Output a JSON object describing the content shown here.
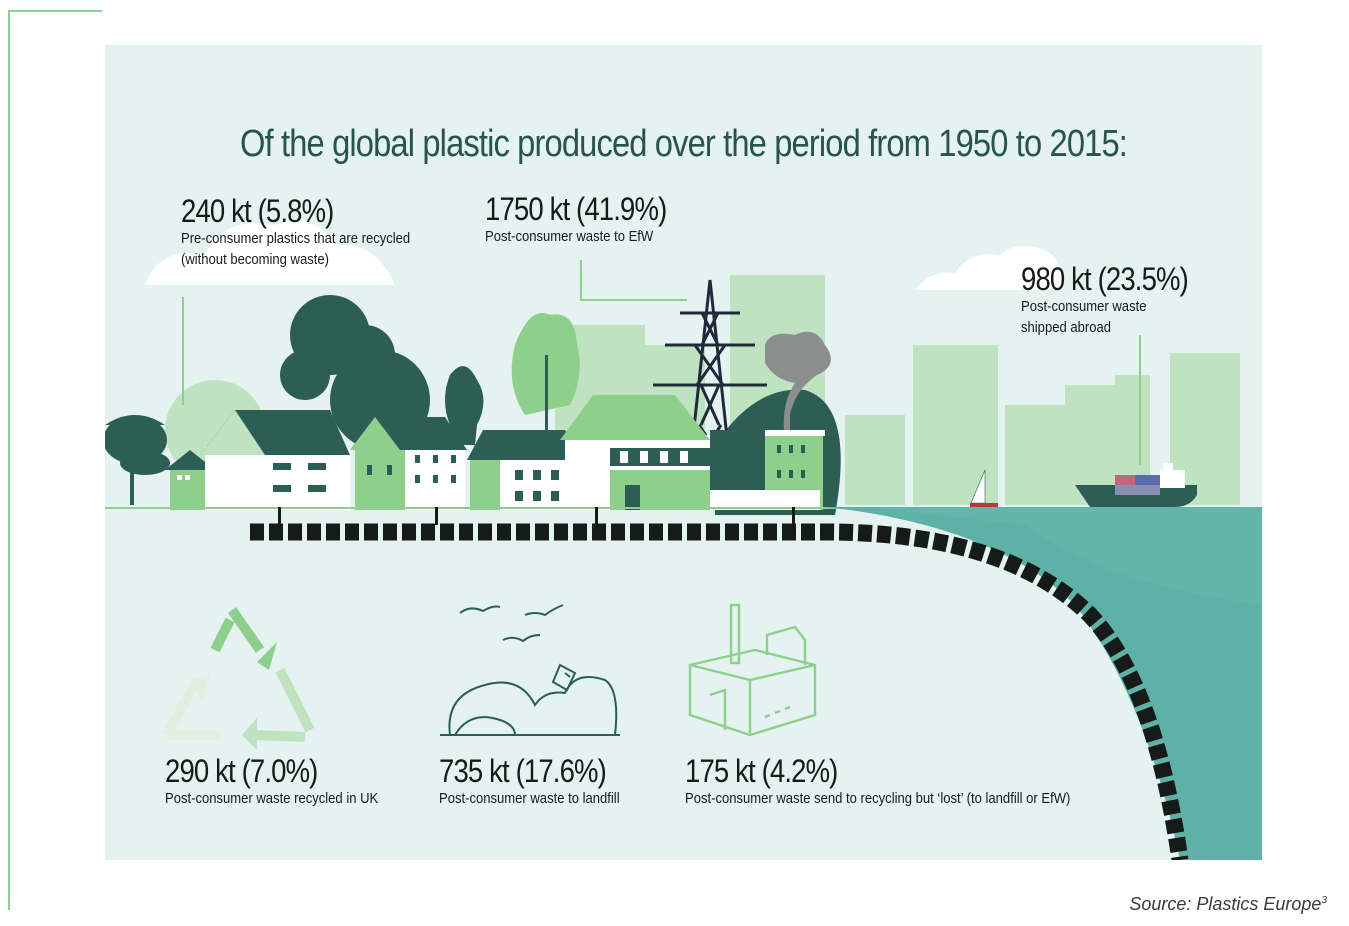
{
  "title": "Of the global plastic produced over the period from 1950 to 2015:",
  "stats": {
    "pre_consumer": {
      "value": "240 kt (5.8%)",
      "desc_line1": "Pre-consumer plastics that are recycled",
      "desc_line2": "(without becoming waste)"
    },
    "efw": {
      "value": "1750 kt (41.9%)",
      "desc_line1": "Post-consumer waste to EfW"
    },
    "shipped": {
      "value": "980 kt (23.5%)",
      "desc_line1": "Post-consumer waste",
      "desc_line2": "shipped abroad"
    },
    "recycled_uk": {
      "value": "290 kt (7.0%)",
      "desc_line1": "Post-consumer waste recycled in UK"
    },
    "landfill": {
      "value": "735 kt (17.6%)",
      "desc_line1": "Post-consumer waste to landfill"
    },
    "lost": {
      "value": "175 kt (4.2%)",
      "desc_line1": "Post-consumer waste send to recycling but ‘lost’ (to landfill or EfW)"
    }
  },
  "source": {
    "text": "Source: Plastics Europe",
    "superscript": "3"
  },
  "colors": {
    "background_panel": "#e4f2f0",
    "dark_green": "#2d5e55",
    "mid_green": "#8ecf8c",
    "light_green": "#bfe3c1",
    "sea": "#5fb0a6",
    "text": "#161b1a",
    "title": "#28544c"
  },
  "icons": [
    "recycle-icon",
    "landfill-icon",
    "factory-icon",
    "pylon-icon",
    "ship-icon",
    "sailboat-icon",
    "birds-icon"
  ]
}
